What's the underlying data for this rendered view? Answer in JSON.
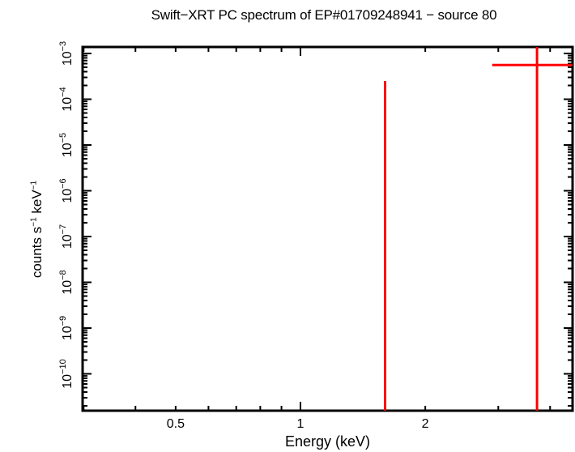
{
  "chart_data": {
    "type": "scatter",
    "title": "Swift−XRT PC spectrum of EP#01709248941 − source 80",
    "xlabel": "Energy (keV)",
    "ylabel": "counts s⁻¹ keV⁻¹",
    "xscale": "log",
    "yscale": "log",
    "xlim": [
      0.3,
      4.53
    ],
    "ylim": [
      1.6e-11,
      0.0014
    ],
    "x_ticks": [
      {
        "value": 0.5,
        "label": "0.5"
      },
      {
        "value": 1,
        "label": "1"
      },
      {
        "value": 2,
        "label": "2"
      }
    ],
    "y_ticks": [
      {
        "exp": -3,
        "label": "10−3"
      },
      {
        "exp": -4,
        "label": "10−4"
      },
      {
        "exp": -5,
        "label": "10−5"
      },
      {
        "exp": -6,
        "label": "10−6"
      },
      {
        "exp": -7,
        "label": "10−7"
      },
      {
        "exp": -8,
        "label": "10−8"
      },
      {
        "exp": -9,
        "label": "10−9"
      },
      {
        "exp": -10,
        "label": "10−10"
      }
    ],
    "grid": false,
    "legend": null,
    "series": [
      {
        "name": "data",
        "color": "#ff0000",
        "points": [
          {
            "x": 1.6,
            "xerr_low": 1.6,
            "xerr_high": 1.6,
            "y": null,
            "y_upper": 0.00025,
            "y_lower": "below axis",
            "note": "vertical error bar only"
          },
          {
            "x": 3.72,
            "xerr_low": 2.9,
            "xerr_high": 4.53,
            "y": 0.00056,
            "y_upper": "above axis",
            "y_lower": "below axis"
          }
        ]
      }
    ]
  },
  "labels": {
    "title": "Swift−XRT PC spectrum of EP#01709248941 − source 80",
    "xlabel": "Energy (keV)",
    "ylabel_main": "counts s",
    "ylabel_sup1": "−1",
    "ylabel_mid": " keV",
    "ylabel_sup2": "−1"
  },
  "colors": {
    "data": "#ff0000",
    "axis": "#000000",
    "background": "#ffffff"
  }
}
